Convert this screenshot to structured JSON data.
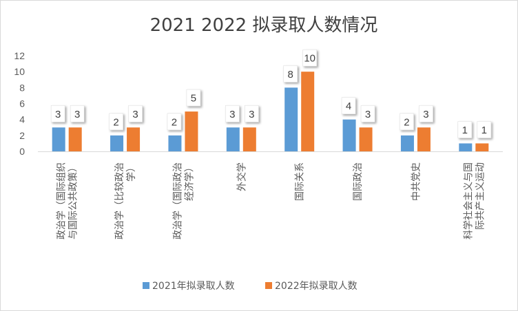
{
  "chart_data": {
    "type": "bar",
    "title": "2021  2022  拟录取人数情况",
    "categories": [
      [
        "政治学（国际组织",
        "与国际公共政策）"
      ],
      [
        "政治学（比较政治",
        "学）"
      ],
      [
        "政治学（国际政治",
        "经济学）"
      ],
      [
        "外交学"
      ],
      [
        "国际关系"
      ],
      [
        "国际政治"
      ],
      [
        "中共党史"
      ],
      [
        "科学社会主义与国",
        "际共产主义运动"
      ]
    ],
    "series": [
      {
        "name": "2021年拟录取人数",
        "color": "#5b9bd5",
        "values": [
          3,
          2,
          2,
          3,
          8,
          4,
          2,
          1
        ]
      },
      {
        "name": "2022年拟录取人数",
        "color": "#ed7d31",
        "values": [
          3,
          3,
          5,
          3,
          10,
          3,
          3,
          1
        ]
      }
    ],
    "ylim": [
      0,
      12
    ],
    "yticks": [
      "0",
      "2",
      "4",
      "6",
      "8",
      "10",
      "12"
    ],
    "legend": "bottom",
    "grid": false
  }
}
